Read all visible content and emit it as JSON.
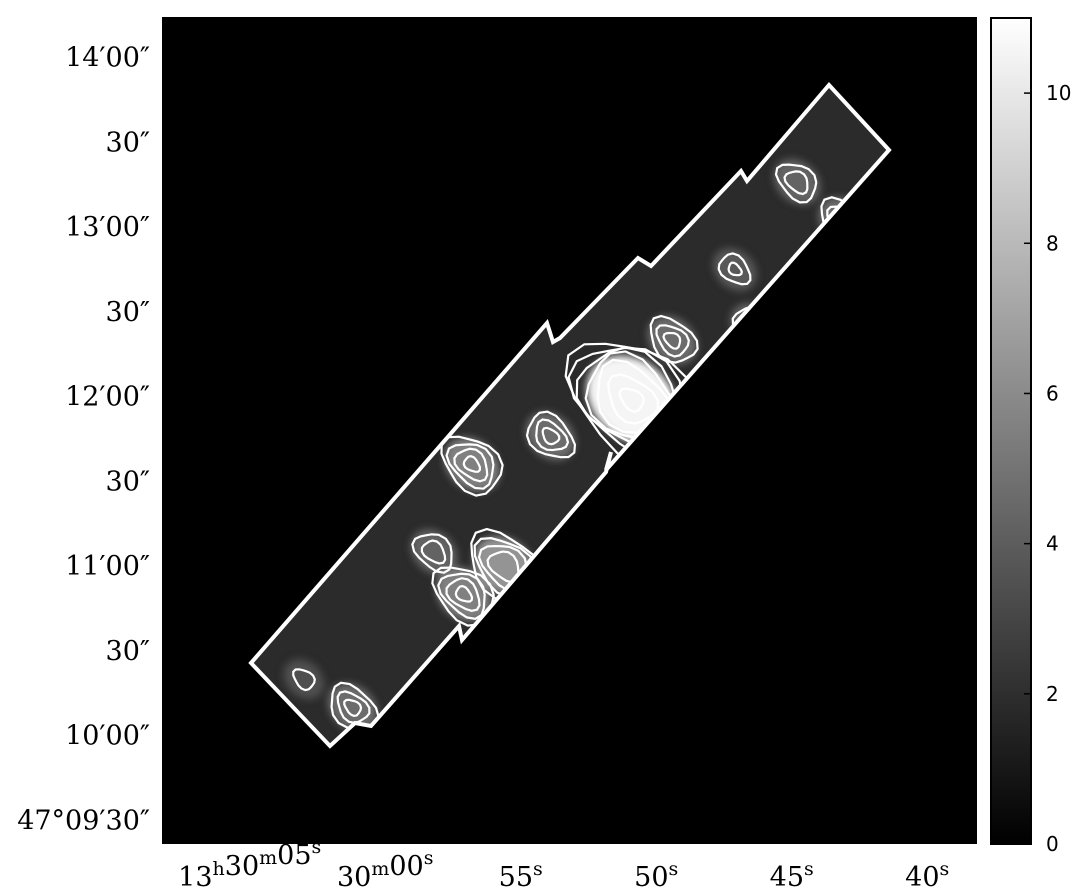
{
  "chart_data": {
    "type": "heatmap",
    "title": "",
    "xlabel": "",
    "ylabel": "",
    "x_ticks": [
      {
        "ra_sec": 65,
        "label_main": "13",
        "label_sup": "h",
        "label_main2": "30",
        "label_sup2": "m",
        "label_main3": "05",
        "label_sup3": "s"
      },
      {
        "ra_sec": 60,
        "label_main": "30",
        "label_sup": "m",
        "label_main2": "00",
        "label_sup2": "s"
      },
      {
        "ra_sec": 55,
        "label_main": "55",
        "label_sup": "s"
      },
      {
        "ra_sec": 50,
        "label_main": "50",
        "label_sup": "s"
      },
      {
        "ra_sec": 45,
        "label_main": "45",
        "label_sup": "s"
      },
      {
        "ra_sec": 40,
        "label_main": "40",
        "label_sup": "s"
      }
    ],
    "y_ticks": [
      {
        "dec_arcsec": 840,
        "label": "14′00″"
      },
      {
        "dec_arcsec": 810,
        "label": "30″"
      },
      {
        "dec_arcsec": 780,
        "label": "13′00″"
      },
      {
        "dec_arcsec": 750,
        "label": "30″"
      },
      {
        "dec_arcsec": 720,
        "label": "12′00″"
      },
      {
        "dec_arcsec": 690,
        "label": "30″"
      },
      {
        "dec_arcsec": 660,
        "label": "11′00″"
      },
      {
        "dec_arcsec": 630,
        "label": "30″"
      },
      {
        "dec_arcsec": 600,
        "label": "10′00″"
      },
      {
        "dec_arcsec": 570,
        "label": "47°09′30″"
      }
    ],
    "x_range_ra_sec": [
      68.2,
      38.2
    ],
    "y_range_dec_arcsec": [
      562,
      854
    ],
    "colorbar": {
      "min": 0,
      "max": 11,
      "ticks": [
        0,
        2,
        4,
        6,
        8,
        10
      ],
      "colormap": "grayscale"
    },
    "peaks": [
      {
        "ra_sec": 50.9,
        "dec_arcsec": 719,
        "value": 10.5
      },
      {
        "ra_sec": 55.6,
        "dec_arcsec": 660,
        "value": 5.5
      },
      {
        "ra_sec": 57.1,
        "dec_arcsec": 650,
        "value": 4.5
      },
      {
        "ra_sec": 56.8,
        "dec_arcsec": 696,
        "value": 4.5
      },
      {
        "ra_sec": 53.9,
        "dec_arcsec": 706,
        "value": 3.5
      },
      {
        "ra_sec": 49.4,
        "dec_arcsec": 740,
        "value": 3.5
      },
      {
        "ra_sec": 46.4,
        "dec_arcsec": 745,
        "value": 3.0
      },
      {
        "ra_sec": 43.1,
        "dec_arcsec": 782,
        "value": 3.5
      },
      {
        "ra_sec": 44.8,
        "dec_arcsec": 796,
        "value": 3.0
      },
      {
        "ra_sec": 61.2,
        "dec_arcsec": 610,
        "value": 3.5
      },
      {
        "ra_sec": 58.2,
        "dec_arcsec": 665,
        "value": 3.0
      },
      {
        "ra_sec": 47.1,
        "dec_arcsec": 765,
        "value": 2.5
      },
      {
        "ra_sec": 63.0,
        "dec_arcsec": 620,
        "value": 2.0
      }
    ],
    "contour_levels": [
      1.6,
      2.4,
      3.2,
      4.2,
      5.5,
      7.5,
      9.5
    ],
    "footprint": "rotated mapped strip (white outline)",
    "grid": false
  },
  "colors": {
    "background": "#000000",
    "frame": "#000000",
    "contour": "#ffffff",
    "footprint_outline": "#ffffff"
  }
}
